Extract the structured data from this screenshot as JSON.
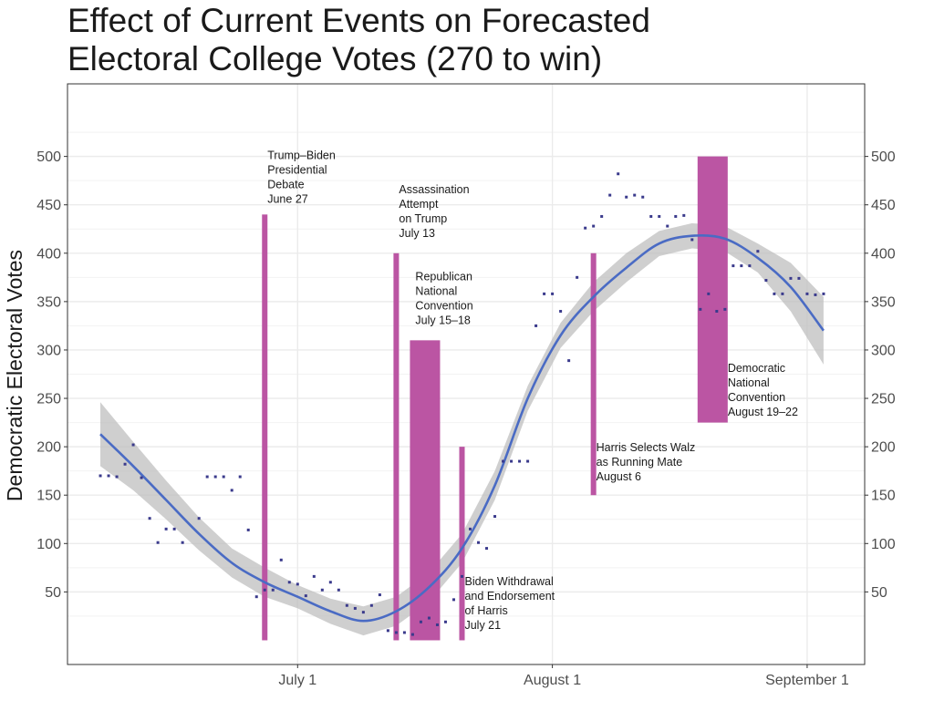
{
  "chart_data": {
    "type": "scatter",
    "title_lines": [
      "Effect of Current Events on Forecasted",
      "Electoral College Votes (270 to win)"
    ],
    "xlabel": "",
    "ylabel": "Democratic Electoral Votes",
    "x_axis": {
      "type": "date",
      "range": [
        "2024-06-03",
        "2024-09-08"
      ],
      "ticks": [
        {
          "date": "2024-07-01",
          "label": "July 1"
        },
        {
          "date": "2024-08-01",
          "label": "August 1"
        },
        {
          "date": "2024-09-01",
          "label": "September 1"
        }
      ]
    },
    "y_axis": {
      "range": [
        -25,
        575
      ],
      "ticks": [
        50,
        100,
        150,
        200,
        250,
        300,
        350,
        400,
        450,
        500
      ],
      "minor_gridlines": [
        25,
        75,
        125,
        175,
        225,
        275,
        325,
        375,
        425,
        475,
        525
      ],
      "secondary_axis_right": true
    },
    "grid": true,
    "colors": {
      "points": "#3a3a8c",
      "trend": "#4a6bc4",
      "ribbon": "#bdbdbd",
      "events": "#bb55a3"
    },
    "points": [
      {
        "x": "2024-06-07",
        "y": 170
      },
      {
        "x": "2024-06-08",
        "y": 170
      },
      {
        "x": "2024-06-09",
        "y": 169
      },
      {
        "x": "2024-06-10",
        "y": 182
      },
      {
        "x": "2024-06-11",
        "y": 202
      },
      {
        "x": "2024-06-12",
        "y": 168
      },
      {
        "x": "2024-06-13",
        "y": 126
      },
      {
        "x": "2024-06-14",
        "y": 101
      },
      {
        "x": "2024-06-15",
        "y": 115
      },
      {
        "x": "2024-06-16",
        "y": 115
      },
      {
        "x": "2024-06-17",
        "y": 101
      },
      {
        "x": "2024-06-19",
        "y": 126
      },
      {
        "x": "2024-06-20",
        "y": 169
      },
      {
        "x": "2024-06-21",
        "y": 169
      },
      {
        "x": "2024-06-22",
        "y": 169
      },
      {
        "x": "2024-06-23",
        "y": 155
      },
      {
        "x": "2024-06-24",
        "y": 169
      },
      {
        "x": "2024-06-25",
        "y": 114
      },
      {
        "x": "2024-06-26",
        "y": 45
      },
      {
        "x": "2024-06-27",
        "y": 52
      },
      {
        "x": "2024-06-28",
        "y": 52
      },
      {
        "x": "2024-06-29",
        "y": 83
      },
      {
        "x": "2024-06-30",
        "y": 60
      },
      {
        "x": "2024-07-01",
        "y": 58
      },
      {
        "x": "2024-07-02",
        "y": 46
      },
      {
        "x": "2024-07-03",
        "y": 66
      },
      {
        "x": "2024-07-04",
        "y": 52
      },
      {
        "x": "2024-07-05",
        "y": 60
      },
      {
        "x": "2024-07-06",
        "y": 52
      },
      {
        "x": "2024-07-07",
        "y": 36
      },
      {
        "x": "2024-07-08",
        "y": 33
      },
      {
        "x": "2024-07-09",
        "y": 29
      },
      {
        "x": "2024-07-10",
        "y": 36
      },
      {
        "x": "2024-07-11",
        "y": 47
      },
      {
        "x": "2024-07-12",
        "y": 10
      },
      {
        "x": "2024-07-13",
        "y": 8
      },
      {
        "x": "2024-07-14",
        "y": 8
      },
      {
        "x": "2024-07-15",
        "y": 6
      },
      {
        "x": "2024-07-16",
        "y": 19
      },
      {
        "x": "2024-07-17",
        "y": 23
      },
      {
        "x": "2024-07-18",
        "y": 16
      },
      {
        "x": "2024-07-19",
        "y": 19
      },
      {
        "x": "2024-07-20",
        "y": 42
      },
      {
        "x": "2024-07-21",
        "y": 66
      },
      {
        "x": "2024-07-22",
        "y": 115
      },
      {
        "x": "2024-07-23",
        "y": 101
      },
      {
        "x": "2024-07-24",
        "y": 95
      },
      {
        "x": "2024-07-25",
        "y": 128
      },
      {
        "x": "2024-07-26",
        "y": 185
      },
      {
        "x": "2024-07-27",
        "y": 185
      },
      {
        "x": "2024-07-28",
        "y": 185
      },
      {
        "x": "2024-07-29",
        "y": 185
      },
      {
        "x": "2024-07-30",
        "y": 325
      },
      {
        "x": "2024-07-31",
        "y": 358
      },
      {
        "x": "2024-08-01",
        "y": 358
      },
      {
        "x": "2024-08-02",
        "y": 340
      },
      {
        "x": "2024-08-03",
        "y": 289
      },
      {
        "x": "2024-08-04",
        "y": 375
      },
      {
        "x": "2024-08-05",
        "y": 426
      },
      {
        "x": "2024-08-06",
        "y": 428
      },
      {
        "x": "2024-08-07",
        "y": 438
      },
      {
        "x": "2024-08-08",
        "y": 460
      },
      {
        "x": "2024-08-09",
        "y": 482
      },
      {
        "x": "2024-08-10",
        "y": 458
      },
      {
        "x": "2024-08-11",
        "y": 460
      },
      {
        "x": "2024-08-12",
        "y": 458
      },
      {
        "x": "2024-08-13",
        "y": 438
      },
      {
        "x": "2024-08-14",
        "y": 438
      },
      {
        "x": "2024-08-15",
        "y": 428
      },
      {
        "x": "2024-08-16",
        "y": 438
      },
      {
        "x": "2024-08-17",
        "y": 439
      },
      {
        "x": "2024-08-18",
        "y": 414
      },
      {
        "x": "2024-08-19",
        "y": 342
      },
      {
        "x": "2024-08-20",
        "y": 358
      },
      {
        "x": "2024-08-21",
        "y": 340
      },
      {
        "x": "2024-08-22",
        "y": 342
      },
      {
        "x": "2024-08-23",
        "y": 387
      },
      {
        "x": "2024-08-24",
        "y": 387
      },
      {
        "x": "2024-08-25",
        "y": 387
      },
      {
        "x": "2024-08-26",
        "y": 402
      },
      {
        "x": "2024-08-27",
        "y": 372
      },
      {
        "x": "2024-08-28",
        "y": 358
      },
      {
        "x": "2024-08-29",
        "y": 358
      },
      {
        "x": "2024-08-30",
        "y": 374
      },
      {
        "x": "2024-08-31",
        "y": 374
      },
      {
        "x": "2024-09-01",
        "y": 358
      },
      {
        "x": "2024-09-02",
        "y": 357
      },
      {
        "x": "2024-09-03",
        "y": 358
      }
    ],
    "trend": {
      "x": [
        "2024-06-07",
        "2024-06-11",
        "2024-06-15",
        "2024-06-19",
        "2024-06-23",
        "2024-06-27",
        "2024-07-01",
        "2024-07-05",
        "2024-07-09",
        "2024-07-13",
        "2024-07-17",
        "2024-07-21",
        "2024-07-25",
        "2024-07-29",
        "2024-08-02",
        "2024-08-06",
        "2024-08-10",
        "2024-08-14",
        "2024-08-18",
        "2024-08-22",
        "2024-08-26",
        "2024-08-30",
        "2024-09-03"
      ],
      "y": [
        213,
        180,
        145,
        110,
        80,
        60,
        45,
        30,
        20,
        30,
        55,
        95,
        160,
        250,
        315,
        355,
        385,
        410,
        418,
        415,
        395,
        365,
        320
      ],
      "lower": [
        180,
        155,
        125,
        93,
        65,
        45,
        33,
        17,
        5,
        15,
        40,
        80,
        145,
        237,
        302,
        340,
        370,
        397,
        405,
        402,
        380,
        340,
        285
      ],
      "upper": [
        246,
        205,
        165,
        127,
        95,
        75,
        57,
        43,
        35,
        45,
        70,
        110,
        175,
        263,
        328,
        370,
        400,
        423,
        431,
        428,
        410,
        390,
        355
      ]
    },
    "events": [
      {
        "name": "trump-biden-debate",
        "start": "2024-06-27",
        "end": "2024-06-27",
        "y_top": 440,
        "y_bottom": 0,
        "label_lines": [
          "Trump–Biden",
          "Presidential",
          "Debate",
          "June 27"
        ],
        "label_x": "2024-06-27",
        "label_y": 500,
        "label_anchor": "top"
      },
      {
        "name": "assassination-attempt",
        "start": "2024-07-13",
        "end": "2024-07-13",
        "y_top": 400,
        "y_bottom": 0,
        "label_lines": [
          "Assassination",
          "Attempt",
          "on Trump",
          "July 13"
        ],
        "label_x": "2024-07-13",
        "label_y": 465,
        "label_anchor": "top"
      },
      {
        "name": "republican-convention",
        "start": "2024-07-15",
        "end": "2024-07-18",
        "y_top": 310,
        "y_bottom": 0,
        "label_lines": [
          "Republican",
          "National",
          "Convention",
          "July 15–18"
        ],
        "label_x": "2024-07-15",
        "label_y": 375,
        "label_anchor": "top"
      },
      {
        "name": "biden-withdrawal",
        "start": "2024-07-21",
        "end": "2024-07-21",
        "y_top": 200,
        "y_bottom": 0,
        "label_lines": [
          "Biden Withdrawal",
          "and Endorsement",
          "of Harris",
          "July 21"
        ],
        "label_x": "2024-07-21",
        "label_y": 60,
        "label_anchor": "top"
      },
      {
        "name": "harris-selects-walz",
        "start": "2024-08-06",
        "end": "2024-08-06",
        "y_top": 400,
        "y_bottom": 150,
        "label_lines": [
          "Harris Selects Walz",
          "as Running Mate",
          "August 6"
        ],
        "label_x": "2024-08-06",
        "label_y": 198,
        "label_anchor": "top"
      },
      {
        "name": "democratic-convention",
        "start": "2024-08-19",
        "end": "2024-08-22",
        "y_top": 500,
        "y_bottom": 225,
        "label_lines": [
          "Democratic",
          "National",
          "Convention",
          "August 19–22"
        ],
        "label_x": "2024-08-22",
        "label_y": 280,
        "label_anchor": "top"
      }
    ]
  }
}
